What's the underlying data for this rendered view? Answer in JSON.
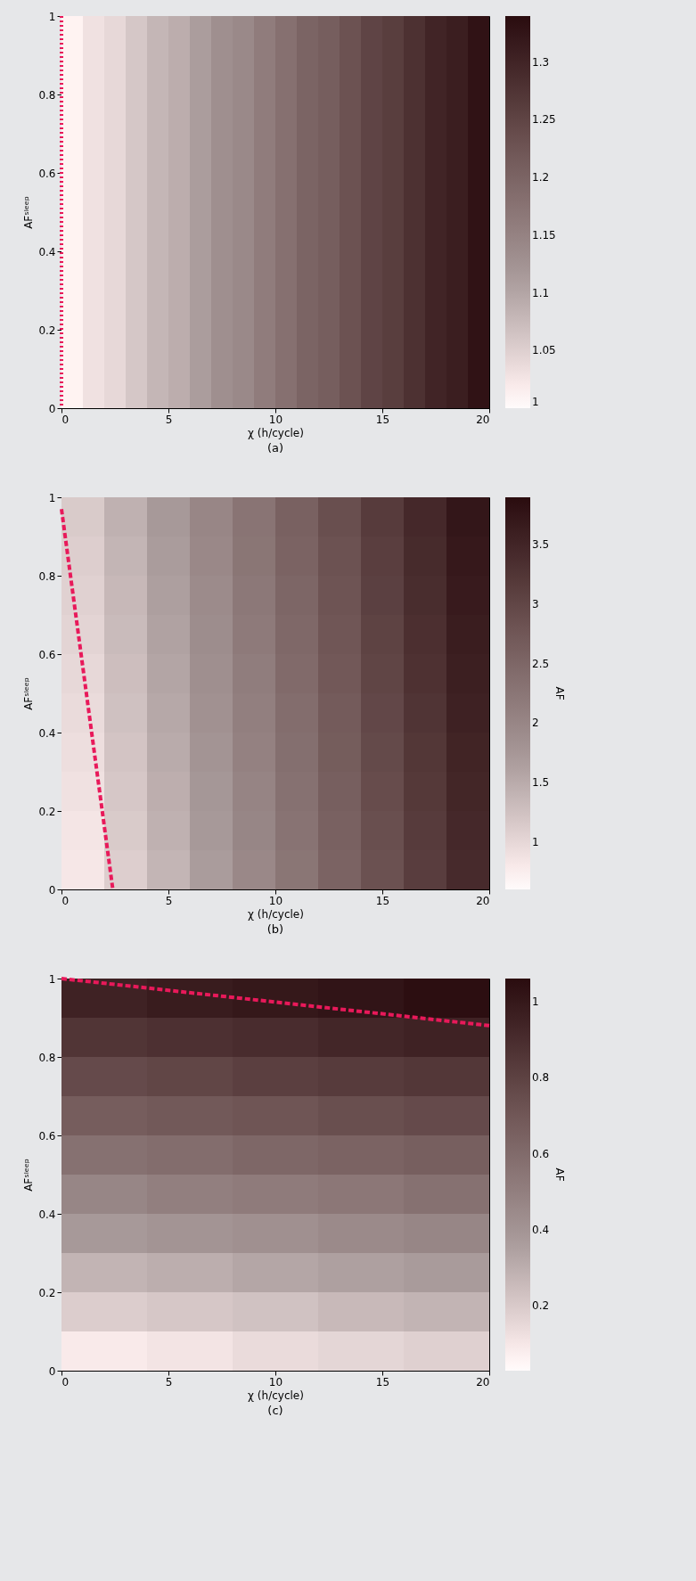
{
  "chart_data": [
    {
      "type": "heatmap",
      "xlabel": "χ (h/cycle)",
      "ylabel": "AFˢˡᵉᵉᵖ",
      "annotations": [
        "(a)"
      ],
      "x": [
        0.5,
        1.5,
        2.5,
        3.5,
        4.5,
        5.5,
        6.5,
        7.5,
        8.5,
        9.5,
        10.5,
        11.5,
        12.5,
        13.5,
        14.5,
        15.5,
        16.5,
        17.5,
        18.5,
        19.5
      ],
      "cells": [
        [
          1.01,
          1.03,
          1.04,
          1.06,
          1.08,
          1.09,
          1.11,
          1.13,
          1.14,
          1.16,
          1.18,
          1.2,
          1.21,
          1.23,
          1.25,
          1.26,
          1.28,
          1.3,
          1.31,
          1.33
        ]
      ],
      "clim": [
        1,
        1.34
      ],
      "cticks": [
        1,
        1.05,
        1.1,
        1.15,
        1.2,
        1.25,
        1.3
      ],
      "xlim": [
        0,
        20
      ],
      "xticks": [
        0,
        5,
        10,
        15,
        20
      ],
      "ylim": [
        0,
        1
      ],
      "yticks": [
        0,
        0.2,
        0.4,
        0.6,
        0.8,
        1
      ],
      "ref_lines": [
        {
          "axis": "x",
          "value": 0,
          "color": "#e8195a",
          "line_style": "dotted"
        }
      ]
    },
    {
      "type": "heatmap",
      "xlabel": "χ (h/cycle)",
      "ylabel": "AFˢˡᵉᵉᵖ",
      "clabel": "AF",
      "annotations": [
        "(b)"
      ],
      "x": [
        1,
        3,
        5,
        7,
        9,
        11,
        13,
        15,
        17,
        19
      ],
      "y": [
        0.95,
        0.85,
        0.75,
        0.65,
        0.55,
        0.45,
        0.35,
        0.25,
        0.15,
        0.05
      ],
      "cells": [
        [
          1.14,
          1.43,
          1.71,
          2.0,
          2.29,
          2.58,
          2.87,
          3.16,
          3.45,
          3.74
        ],
        [
          1.1,
          1.39,
          1.68,
          1.97,
          2.26,
          2.55,
          2.83,
          3.12,
          3.41,
          3.7
        ],
        [
          1.07,
          1.35,
          1.64,
          1.93,
          2.22,
          2.51,
          2.8,
          3.09,
          3.38,
          3.67
        ],
        [
          1.03,
          1.32,
          1.61,
          1.9,
          2.19,
          2.47,
          2.76,
          3.05,
          3.34,
          3.63
        ],
        [
          0.99,
          1.28,
          1.57,
          1.86,
          2.15,
          2.44,
          2.73,
          3.02,
          3.31,
          3.59
        ],
        [
          0.96,
          1.25,
          1.54,
          1.83,
          2.11,
          2.4,
          2.69,
          2.98,
          3.27,
          3.56
        ],
        [
          0.92,
          1.21,
          1.5,
          1.79,
          2.08,
          2.37,
          2.66,
          2.95,
          3.23,
          3.52
        ],
        [
          0.89,
          1.18,
          1.46,
          1.75,
          2.04,
          2.33,
          2.62,
          2.91,
          3.2,
          3.49
        ],
        [
          0.85,
          1.14,
          1.43,
          1.72,
          2.01,
          2.3,
          2.59,
          2.87,
          3.16,
          3.45
        ],
        [
          0.82,
          1.1,
          1.39,
          1.68,
          1.97,
          2.26,
          2.55,
          2.84,
          3.13,
          3.42
        ]
      ],
      "clim": [
        0.6,
        3.9
      ],
      "cticks": [
        1,
        1.5,
        2,
        2.5,
        3,
        3.5
      ],
      "xlim": [
        0,
        20
      ],
      "xticks": [
        0,
        5,
        10,
        15,
        20
      ],
      "ylim": [
        0,
        1
      ],
      "yticks": [
        0,
        0.2,
        0.4,
        0.6,
        0.8,
        1
      ],
      "series": [
        {
          "type": "line",
          "color": "#e8195a",
          "line_style": "dashed",
          "x": [
            2.4,
            0
          ],
          "values": [
            0,
            0.97
          ]
        }
      ]
    },
    {
      "type": "heatmap",
      "xlabel": "χ (h/cycle)",
      "ylabel": "AFˢˡᵉᵉᵖ",
      "clabel": "AF",
      "annotations": [
        "(c)"
      ],
      "x": [
        2,
        6,
        10,
        14,
        18
      ],
      "y": [
        0.95,
        0.85,
        0.75,
        0.65,
        0.55,
        0.45,
        0.35,
        0.25,
        0.15,
        0.05
      ],
      "cells": [
        [
          0.95,
          0.98,
          1.0,
          1.02,
          1.05
        ],
        [
          0.86,
          0.88,
          0.9,
          0.93,
          0.95
        ],
        [
          0.76,
          0.78,
          0.81,
          0.83,
          0.85
        ],
        [
          0.67,
          0.69,
          0.71,
          0.74,
          0.76
        ],
        [
          0.57,
          0.59,
          0.62,
          0.64,
          0.66
        ],
        [
          0.47,
          0.5,
          0.52,
          0.54,
          0.57
        ],
        [
          0.38,
          0.4,
          0.42,
          0.45,
          0.47
        ],
        [
          0.28,
          0.3,
          0.33,
          0.35,
          0.37
        ],
        [
          0.19,
          0.21,
          0.23,
          0.26,
          0.28
        ],
        [
          0.09,
          0.11,
          0.14,
          0.16,
          0.18
        ]
      ],
      "clim": [
        0.03,
        1.06
      ],
      "cticks": [
        0.2,
        0.4,
        0.6,
        0.8,
        1
      ],
      "xlim": [
        0,
        20
      ],
      "xticks": [
        0,
        5,
        10,
        15,
        20
      ],
      "ylim": [
        0,
        1
      ],
      "yticks": [
        0,
        0.2,
        0.4,
        0.6,
        0.8,
        1
      ],
      "series": [
        {
          "type": "line",
          "color": "#e8195a",
          "line_style": "dashed",
          "x": [
            0,
            20
          ],
          "values": [
            1,
            0.88
          ]
        }
      ]
    }
  ]
}
